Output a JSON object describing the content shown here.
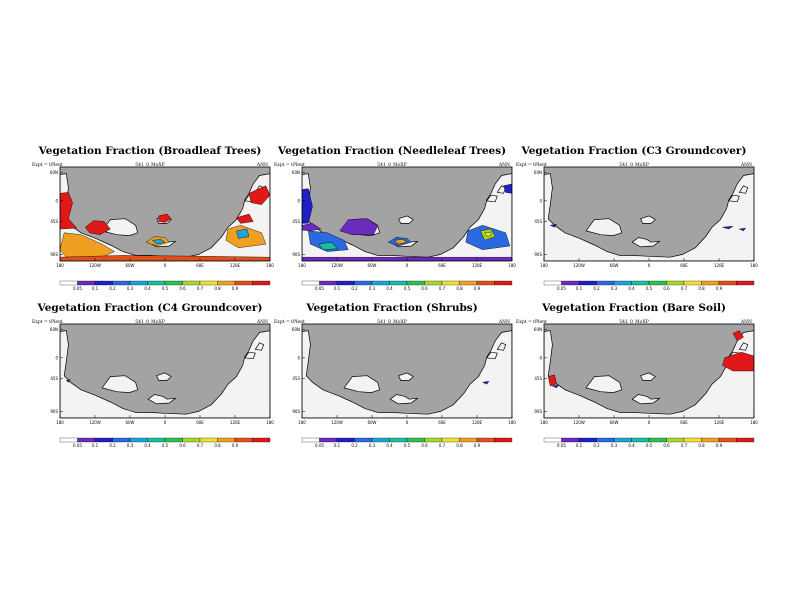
{
  "figure": {
    "case": "541_0_MoXP",
    "expt": "Expt = tPlent",
    "season": "ANN",
    "lat_ticks": [
      "60N",
      "0",
      "45S",
      "90S"
    ],
    "lon_ticks": [
      "180",
      "120W",
      "60W",
      "0",
      "60E",
      "120E",
      "180"
    ],
    "colorbar_labels": [
      "0.05",
      "0.1",
      "0.2",
      "0.3",
      "0.4",
      "0.5",
      "0.6",
      "0.7",
      "0.8",
      "0.9"
    ],
    "colorbar_colors": [
      "#ffffff",
      "#6a2bbf",
      "#2020c8",
      "#2a6ae0",
      "#1aa6d8",
      "#18c0a0",
      "#2ec050",
      "#a8d82a",
      "#f0e030",
      "#f0a020",
      "#e05018",
      "#e01818"
    ],
    "colors": {
      "land_background": "#a3a3a3",
      "ocean": "#f3f3f3",
      "coast": "#000000"
    }
  },
  "panels": [
    {
      "title": "Vegetation Fraction (Broadleaf Trees)"
    },
    {
      "title": "Vegetation Fraction (Needleleaf Trees)"
    },
    {
      "title": "Vegetation Fraction (C3 Groundcover)"
    },
    {
      "title": "Vegetation Fraction (C4 Groundcover)"
    },
    {
      "title": "Vegetation Fraction (Shrubs)"
    },
    {
      "title": "Vegetation Fraction (Bare Soil)"
    }
  ]
}
